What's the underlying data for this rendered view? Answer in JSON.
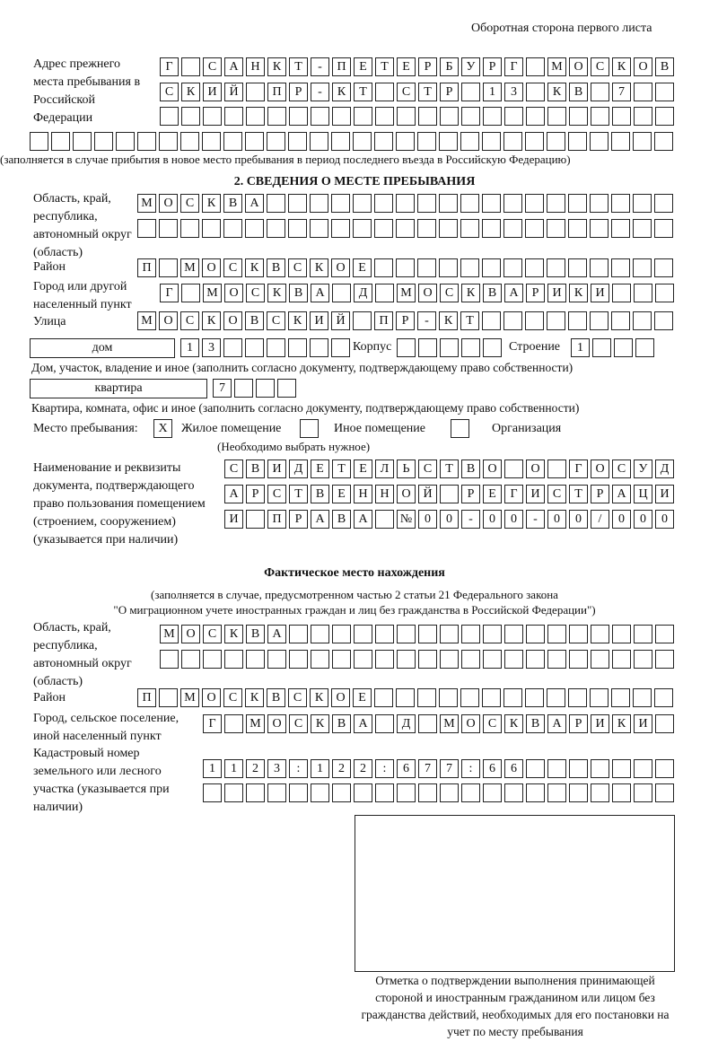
{
  "header": "Оборотная сторона первого листа",
  "previous_address": {
    "label": "Адрес прежнего места пребывания в Российской Федерации",
    "rows": [
      [
        "Г",
        "",
        "С",
        "А",
        "Н",
        "К",
        "Т",
        "-",
        "П",
        "Е",
        "Т",
        "Е",
        "Р",
        "Б",
        "У",
        "Р",
        "Г",
        "",
        "М",
        "О",
        "С",
        "К",
        "О",
        "В"
      ],
      [
        "С",
        "К",
        "И",
        "Й",
        "",
        "П",
        "Р",
        "-",
        "К",
        "Т",
        "",
        "С",
        "Т",
        "Р",
        "",
        "1",
        "3",
        "",
        "К",
        "В",
        "",
        "7",
        "",
        ""
      ],
      [
        "",
        "",
        "",
        "",
        "",
        "",
        "",
        "",
        "",
        "",
        "",
        "",
        "",
        "",
        "",
        "",
        "",
        "",
        "",
        "",
        "",
        "",
        "",
        ""
      ],
      [
        "",
        "",
        "",
        "",
        "",
        "",
        "",
        "",
        "",
        "",
        "",
        "",
        "",
        "",
        "",
        "",
        "",
        "",
        "",
        "",
        "",
        "",
        "",
        "",
        "",
        "",
        "",
        "",
        "",
        ""
      ]
    ],
    "note": "(заполняется в случае прибытия в новое место пребывания в период последнего въезда в Российскую Федерацию)"
  },
  "section2": {
    "title": "2. СВЕДЕНИЯ О МЕСТЕ ПРЕБЫВАНИЯ",
    "region_label": "Область, край, республика, автономный округ (область)",
    "region_rows": [
      [
        "М",
        "О",
        "С",
        "К",
        "В",
        "А",
        "",
        "",
        "",
        "",
        "",
        "",
        "",
        "",
        "",
        "",
        "",
        "",
        "",
        "",
        "",
        "",
        "",
        "",
        ""
      ],
      [
        "",
        "",
        "",
        "",
        "",
        "",
        "",
        "",
        "",
        "",
        "",
        "",
        "",
        "",
        "",
        "",
        "",
        "",
        "",
        "",
        "",
        "",
        "",
        "",
        ""
      ]
    ],
    "district_label": "Район",
    "district": [
      "П",
      "",
      "М",
      "О",
      "С",
      "К",
      "В",
      "С",
      "К",
      "О",
      "Е",
      "",
      "",
      "",
      "",
      "",
      "",
      "",
      "",
      "",
      "",
      "",
      "",
      "",
      ""
    ],
    "city_label": "Город или другой населенный пункт",
    "city": [
      "Г",
      "",
      "М",
      "О",
      "С",
      "К",
      "В",
      "А",
      "",
      "Д",
      "",
      "М",
      "О",
      "С",
      "К",
      "В",
      "А",
      "Р",
      "И",
      "К",
      "И",
      "",
      "",
      ""
    ],
    "street_label": "Улица",
    "street": [
      "М",
      "О",
      "С",
      "К",
      "О",
      "В",
      "С",
      "К",
      "И",
      "Й",
      "",
      "П",
      "Р",
      "-",
      "К",
      "Т",
      "",
      "",
      "",
      "",
      "",
      "",
      "",
      "",
      ""
    ],
    "house_type": "дом",
    "house": [
      "1",
      "3",
      "",
      "",
      "",
      "",
      "",
      ""
    ],
    "korpus_label": "Корпус",
    "korpus": [
      "",
      "",
      "",
      "",
      ""
    ],
    "building_label": "Строение",
    "building": [
      "1",
      "",
      "",
      ""
    ],
    "house_note": "Дом, участок, владение и иное (заполнить согласно документу, подтверждающему право собственности)",
    "apartment_type": "квартира",
    "apartment": [
      "7",
      "",
      "",
      ""
    ],
    "apartment_note": "Квартира, комната, офис и иное (заполнить согласно документу, подтверждающему право собственности)",
    "stay_place_label": "Место пребывания:",
    "options": [
      {
        "mark": "X",
        "label": "Жилое помещение"
      },
      {
        "mark": "",
        "label": "Иное помещение"
      },
      {
        "mark": "",
        "label": "Организация"
      }
    ],
    "options_note": "(Необходимо выбрать нужное)",
    "document_label": "Наименование и реквизиты документа, подтверждающего право пользования помещением (строением, сооружением) (указывается при наличии)",
    "document_rows": [
      [
        "С",
        "В",
        "И",
        "Д",
        "Е",
        "Т",
        "Е",
        "Л",
        "Ь",
        "С",
        "Т",
        "В",
        "О",
        "",
        "О",
        "",
        "Г",
        "О",
        "С",
        "У",
        "Д"
      ],
      [
        "А",
        "Р",
        "С",
        "Т",
        "В",
        "Е",
        "Н",
        "Н",
        "О",
        "Й",
        "",
        "Р",
        "Е",
        "Г",
        "И",
        "С",
        "Т",
        "Р",
        "А",
        "Ц",
        "И"
      ],
      [
        "И",
        "",
        "П",
        "Р",
        "А",
        "В",
        "А",
        "",
        "№",
        "0",
        "0",
        "-",
        "0",
        "0",
        "-",
        "0",
        "0",
        "/",
        "0",
        "0",
        "0"
      ]
    ]
  },
  "actual": {
    "title": "Фактическое место нахождения",
    "note_line1": "(заполняется в случае, предусмотренном частью 2 статьи 21 Федерального закона",
    "note_line2": "\"О миграционном учете иностранных граждан и лиц без гражданства в Российской Федерации\")",
    "region_label": "Область, край, республика, автономный округ (область)",
    "region_rows": [
      [
        "М",
        "О",
        "С",
        "К",
        "В",
        "А",
        "",
        "",
        "",
        "",
        "",
        "",
        "",
        "",
        "",
        "",
        "",
        "",
        "",
        "",
        "",
        "",
        "",
        ""
      ],
      [
        "",
        "",
        "",
        "",
        "",
        "",
        "",
        "",
        "",
        "",
        "",
        "",
        "",
        "",
        "",
        "",
        "",
        "",
        "",
        "",
        "",
        "",
        "",
        ""
      ]
    ],
    "district_label": "Район",
    "district": [
      "П",
      "",
      "М",
      "О",
      "С",
      "К",
      "В",
      "С",
      "К",
      "О",
      "Е",
      "",
      "",
      "",
      "",
      "",
      "",
      "",
      "",
      "",
      "",
      "",
      "",
      "",
      ""
    ],
    "city_label": "Город, сельское поселение, иной населенный пункт",
    "city": [
      "Г",
      "",
      "М",
      "О",
      "С",
      "К",
      "В",
      "А",
      "",
      "Д",
      "",
      "М",
      "О",
      "С",
      "К",
      "В",
      "А",
      "Р",
      "И",
      "К",
      "И",
      ""
    ],
    "cadastral_label": "Кадастровый номер земельного или лесного участка (указывается при наличии)",
    "cadastral_rows": [
      [
        "1",
        "1",
        "2",
        "3",
        ":",
        "1",
        "2",
        "2",
        ":",
        "6",
        "7",
        "7",
        ":",
        "6",
        "6",
        "",
        "",
        "",
        "",
        "",
        "",
        ""
      ],
      [
        "",
        "",
        "",
        "",
        "",
        "",
        "",
        "",
        "",
        "",
        "",
        "",
        "",
        "",
        "",
        "",
        "",
        "",
        "",
        "",
        "",
        ""
      ]
    ]
  },
  "stamp_caption": "Отметка о подтверждении выполнения принимающей стороной и иностранным гражданином или лицом без гражданства действий, необходимых для его постановки на учет по месту пребывания"
}
